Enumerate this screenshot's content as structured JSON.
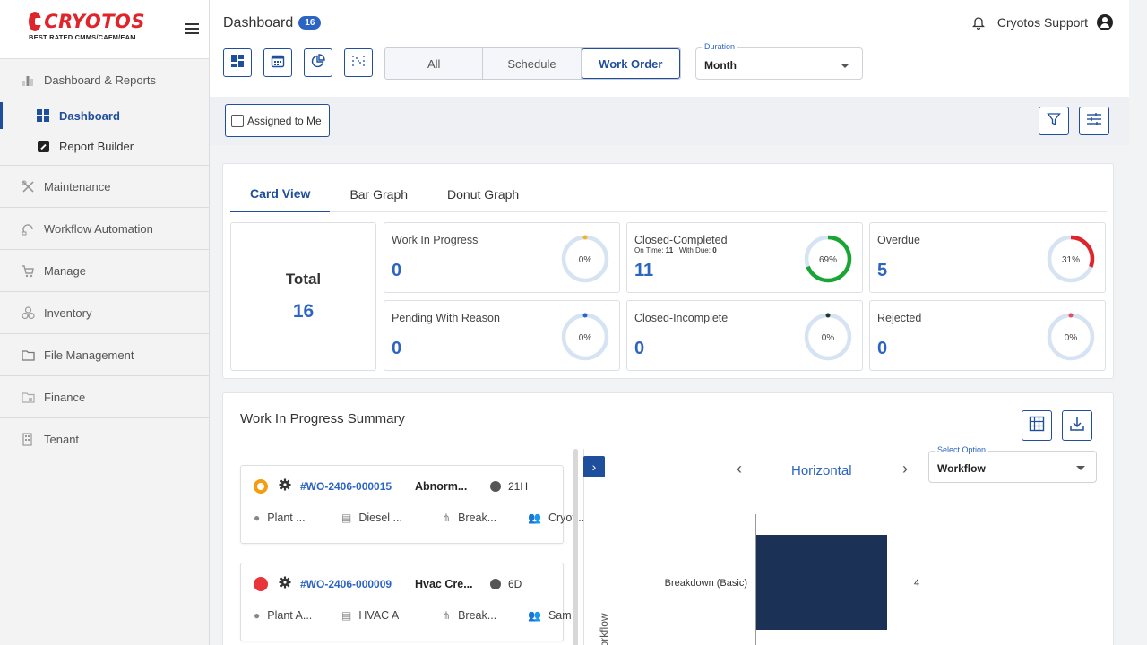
{
  "app": {
    "logo_text": "CRYOTOS",
    "logo_tagline": "BEST RATED CMMS/CAFM/EAM"
  },
  "sidebar": {
    "sections": [
      {
        "label": "Dashboard & Reports",
        "icon": "bar-chart-icon"
      },
      {
        "label": "Maintenance",
        "icon": "tools-icon"
      },
      {
        "label": "Workflow Automation",
        "icon": "workflow-icon"
      },
      {
        "label": "Manage",
        "icon": "cart-icon"
      },
      {
        "label": "Inventory",
        "icon": "boxes-icon"
      },
      {
        "label": "File Management",
        "icon": "folder-icon"
      },
      {
        "label": "Finance",
        "icon": "finance-icon"
      },
      {
        "label": "Tenant",
        "icon": "building-icon"
      }
    ],
    "sub_items": [
      {
        "label": "Dashboard",
        "active": true
      },
      {
        "label": "Report Builder",
        "active": false
      }
    ]
  },
  "header": {
    "title": "Dashboard",
    "count": "16",
    "user": "Cryotos Support",
    "segments": [
      "All",
      "Schedule",
      "Work Order"
    ],
    "active_segment": "Work Order",
    "duration_label": "Duration",
    "duration_value": "Month"
  },
  "filters": {
    "assigned_label": "Assigned to Me"
  },
  "cards": {
    "tabs": [
      "Card View",
      "Bar Graph",
      "Donut Graph"
    ],
    "total_label": "Total",
    "total_value": "16",
    "stats": [
      {
        "title": "Work In Progress",
        "value": "0",
        "pct_label": "0%",
        "pct": 0,
        "color": "#f0b429"
      },
      {
        "title": "Closed-Completed",
        "value": "11",
        "pct_label": "69%",
        "pct": 69,
        "color": "#18a534",
        "sub_on_time_label": "On Time:",
        "sub_on_time": "11",
        "sub_with_due_label": "With Due:",
        "sub_with_due": "0"
      },
      {
        "title": "Overdue",
        "value": "5",
        "pct_label": "31%",
        "pct": 31,
        "color": "#e0242b"
      },
      {
        "title": "Pending With Reason",
        "value": "0",
        "pct_label": "0%",
        "pct": 0,
        "color": "#2c64c3"
      },
      {
        "title": "Closed-Incomplete",
        "value": "0",
        "pct_label": "0%",
        "pct": 0,
        "color": "#1a3a2a"
      },
      {
        "title": "Rejected",
        "value": "0",
        "pct_label": "0%",
        "pct": 0,
        "color": "#e84a5f"
      }
    ],
    "ring_track_color": "#d6e3f3"
  },
  "wip": {
    "title": "Work In Progress Summary",
    "orders": [
      {
        "status_color": "#f29d12",
        "id": "#WO-2406-000015",
        "name": "Abnorm...",
        "time": "21H",
        "location": "Plant ...",
        "asset": "Diesel ...",
        "type": "Break...",
        "assignee": "Cryot..."
      },
      {
        "status_color": "#e8353a",
        "id": "#WO-2406-000009",
        "name": "Hvac Cre...",
        "time": "6D",
        "location": "Plant A...",
        "asset": "HVAC A",
        "type": "Break...",
        "assignee": "Sam"
      }
    ],
    "chart_mode": "Horizontal",
    "select_label": "Select Option",
    "select_value": "Workflow"
  },
  "chart_data": {
    "type": "bar",
    "orientation": "horizontal",
    "categories": [
      "Breakdown (Basic)"
    ],
    "values": [
      4
    ],
    "ylabel": "Workflow",
    "color": "#1b3155"
  }
}
